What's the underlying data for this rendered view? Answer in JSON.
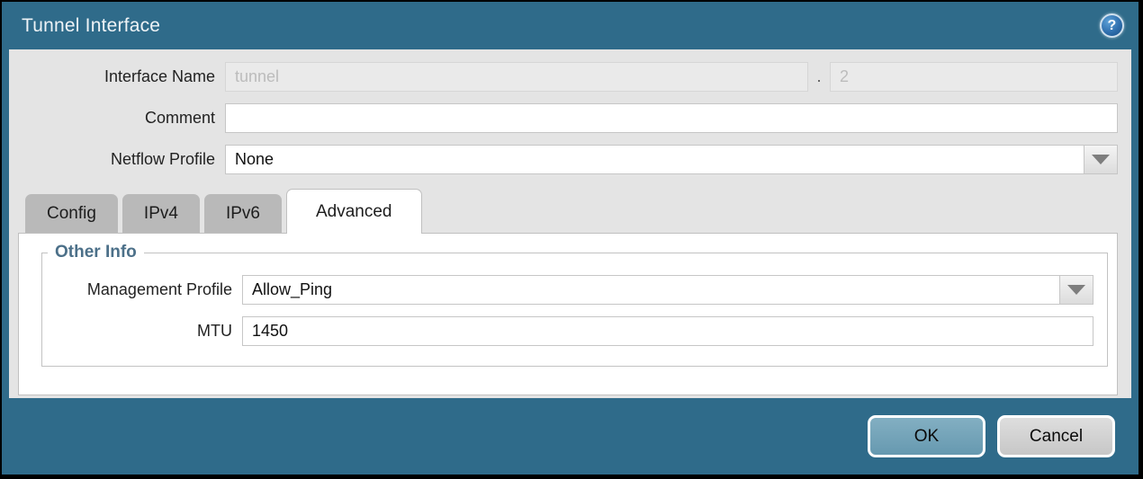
{
  "dialog": {
    "title": "Tunnel Interface"
  },
  "icons": {
    "help": "?"
  },
  "form": {
    "interface_name": {
      "label": "Interface Name",
      "value": "tunnel",
      "separator": ".",
      "subinterface_value": "2"
    },
    "comment": {
      "label": "Comment",
      "value": ""
    },
    "netflow_profile": {
      "label": "Netflow Profile",
      "value": "None"
    }
  },
  "tabs": [
    {
      "label": "Config"
    },
    {
      "label": "IPv4"
    },
    {
      "label": "IPv6"
    },
    {
      "label": "Advanced"
    }
  ],
  "advanced_tab": {
    "group_title": "Other Info",
    "management_profile": {
      "label": "Management Profile",
      "value": "Allow_Ping"
    },
    "mtu": {
      "label": "MTU",
      "value": "1450"
    }
  },
  "footer": {
    "ok_label": "OK",
    "cancel_label": "Cancel"
  },
  "colors": {
    "titlebar_teal": "#2f6b8a",
    "body_gray": "#e4e4e4",
    "inactive_tab_gray": "#b9b9b9",
    "ok_button_teal": "#6fa3b8",
    "group_title_blue": "#4c7089"
  }
}
